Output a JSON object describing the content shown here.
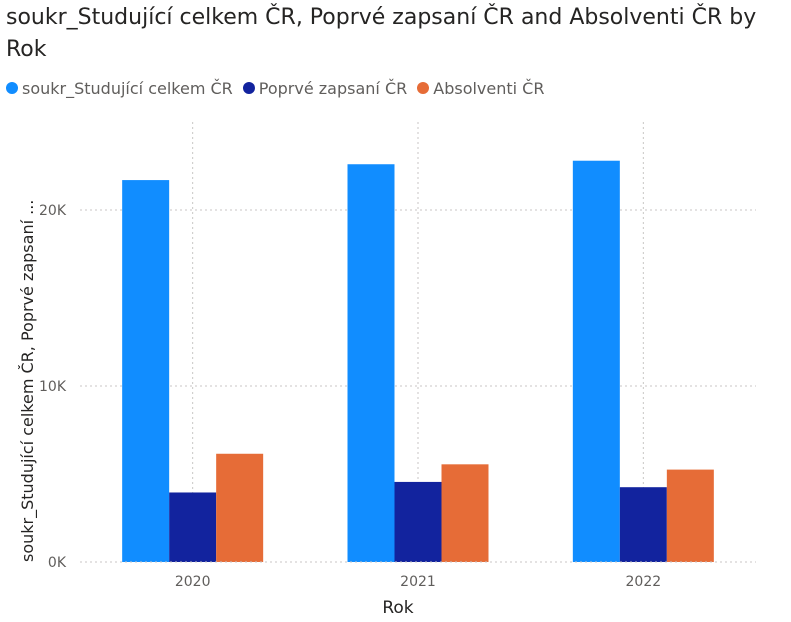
{
  "chart_data": {
    "type": "bar",
    "title": "soukr_Studující celkem ČR, Poprvé zapsaní ČR and Absolventi ČR by Rok",
    "xlabel": "Rok",
    "ylabel": "soukr_Studující celkem ČR, Poprvé zapsaní ...",
    "categories": [
      "2020",
      "2021",
      "2022"
    ],
    "series": [
      {
        "name": "soukr_Studující celkem ČR",
        "color": "#118DFF",
        "values": [
          21700,
          22600,
          22800
        ]
      },
      {
        "name": "Poprvé zapsaní ČR",
        "color": "#12239E",
        "values": [
          3950,
          4550,
          4250
        ]
      },
      {
        "name": "Absolventi ČR",
        "color": "#E66C37",
        "values": [
          6150,
          5550,
          5250
        ]
      }
    ],
    "ylim": [
      0,
      25000
    ],
    "yticks": [
      0,
      10000,
      20000
    ],
    "ytick_labels": [
      "0K",
      "10K",
      "20K"
    ],
    "grid": true,
    "legend_position": "top-left"
  }
}
